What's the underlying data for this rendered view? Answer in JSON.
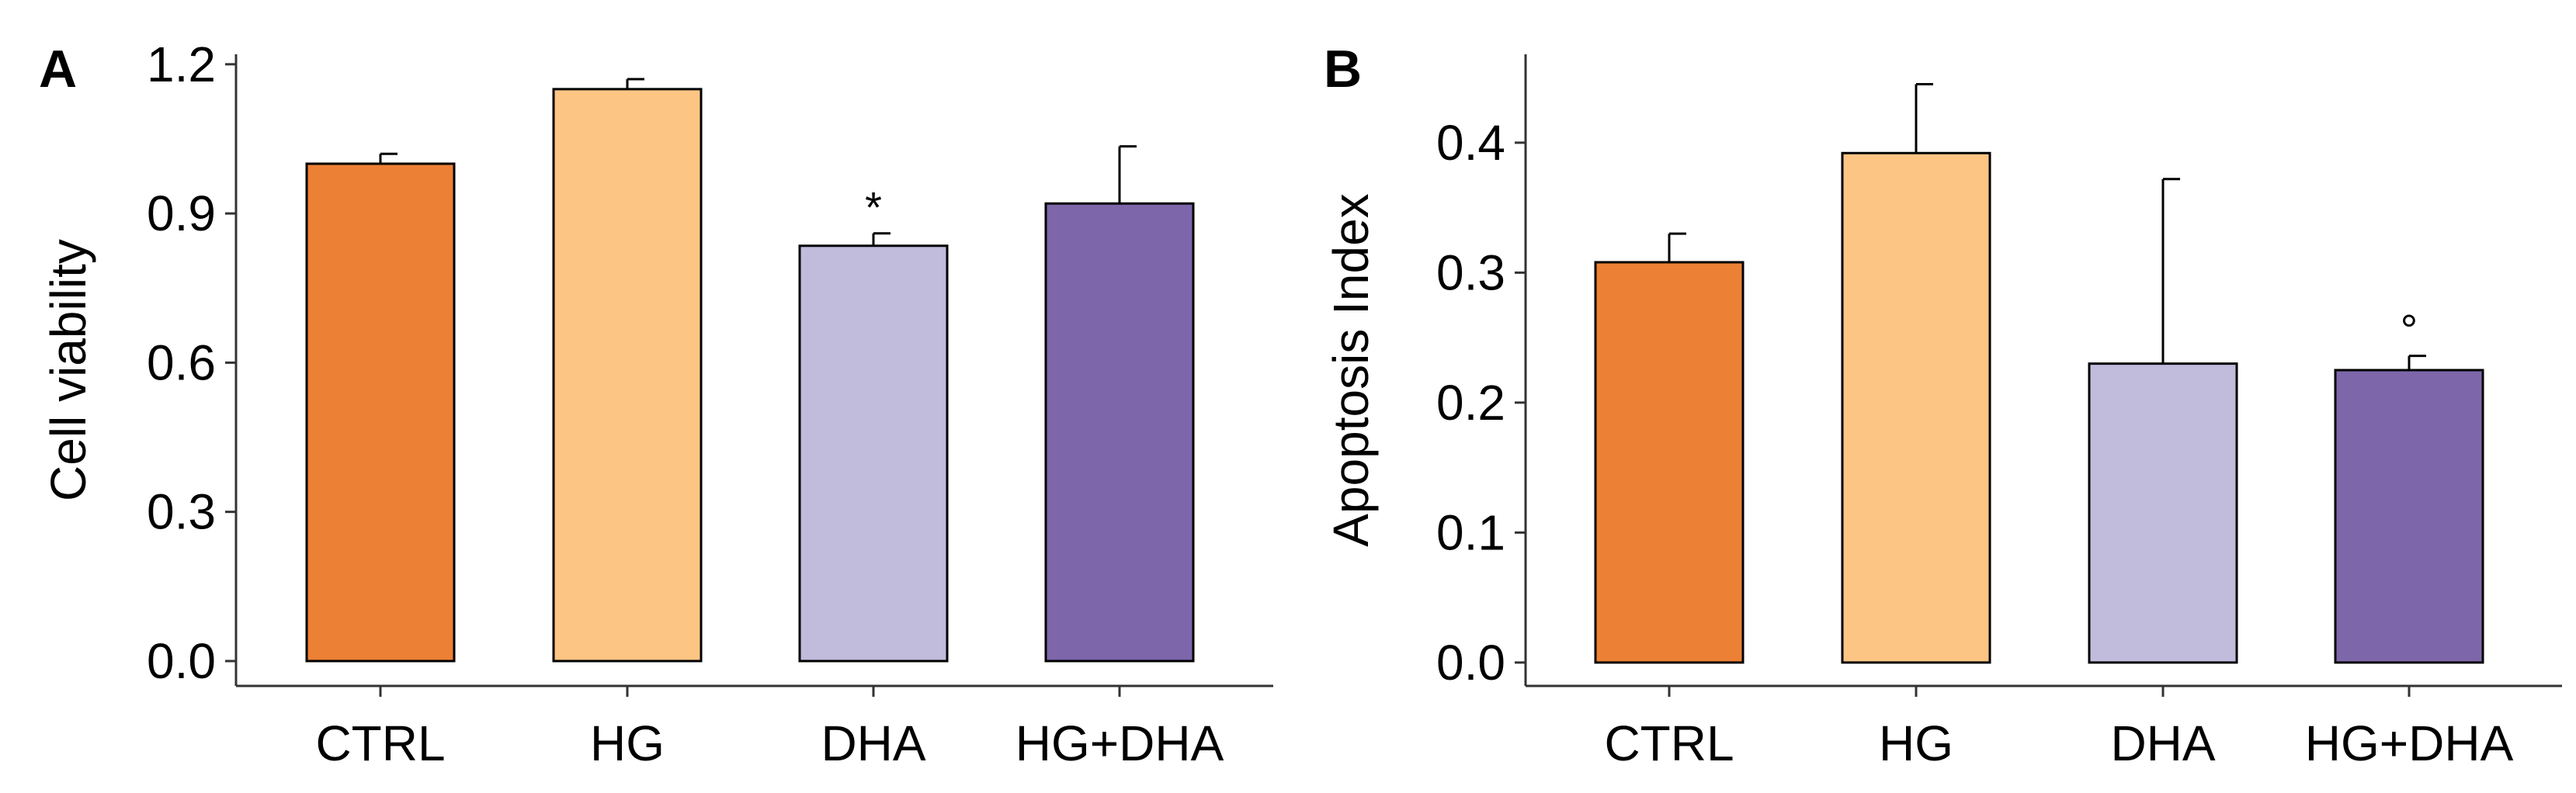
{
  "chart_data": [
    {
      "panel": "A",
      "type": "bar",
      "categories": [
        "CTRL",
        "HG",
        "DHA",
        "HG+DHA"
      ],
      "values": [
        1.0,
        1.15,
        0.835,
        0.92
      ],
      "errors": [
        0.02,
        0.02,
        0.025,
        0.115
      ],
      "annotations": [
        "",
        "",
        "*",
        ""
      ],
      "colors": [
        "#EC8035",
        "#FDC584",
        "#C1BCDC",
        "#7D66AA"
      ],
      "xlabel": "",
      "ylabel": "Cell viability",
      "ylim": [
        -0.05,
        1.22
      ],
      "yticks": [
        0.0,
        0.3,
        0.6,
        0.9,
        1.2
      ],
      "ytick_labels": [
        "0.0",
        "0.3",
        "0.6",
        "0.9",
        "1.2"
      ],
      "grid": false,
      "legend": "none"
    },
    {
      "panel": "B",
      "type": "bar",
      "categories": [
        "CTRL",
        "HG",
        "DHA",
        "HG+DHA"
      ],
      "values": [
        0.308,
        0.392,
        0.23,
        0.225
      ],
      "errors": [
        0.022,
        0.053,
        0.142,
        0.011
      ],
      "annotations": [
        "",
        "",
        "",
        "°"
      ],
      "colors": [
        "#EC8035",
        "#FDC584",
        "#C1BCDC",
        "#7D66AA"
      ],
      "xlabel": "",
      "ylabel": "Apoptosis Index",
      "ylim": [
        -0.018,
        0.468
      ],
      "yticks": [
        0.0,
        0.1,
        0.2,
        0.3,
        0.4
      ],
      "ytick_labels": [
        "0.0",
        "0.1",
        "0.2",
        "0.3",
        "0.4"
      ],
      "grid": false,
      "legend": "none"
    }
  ]
}
